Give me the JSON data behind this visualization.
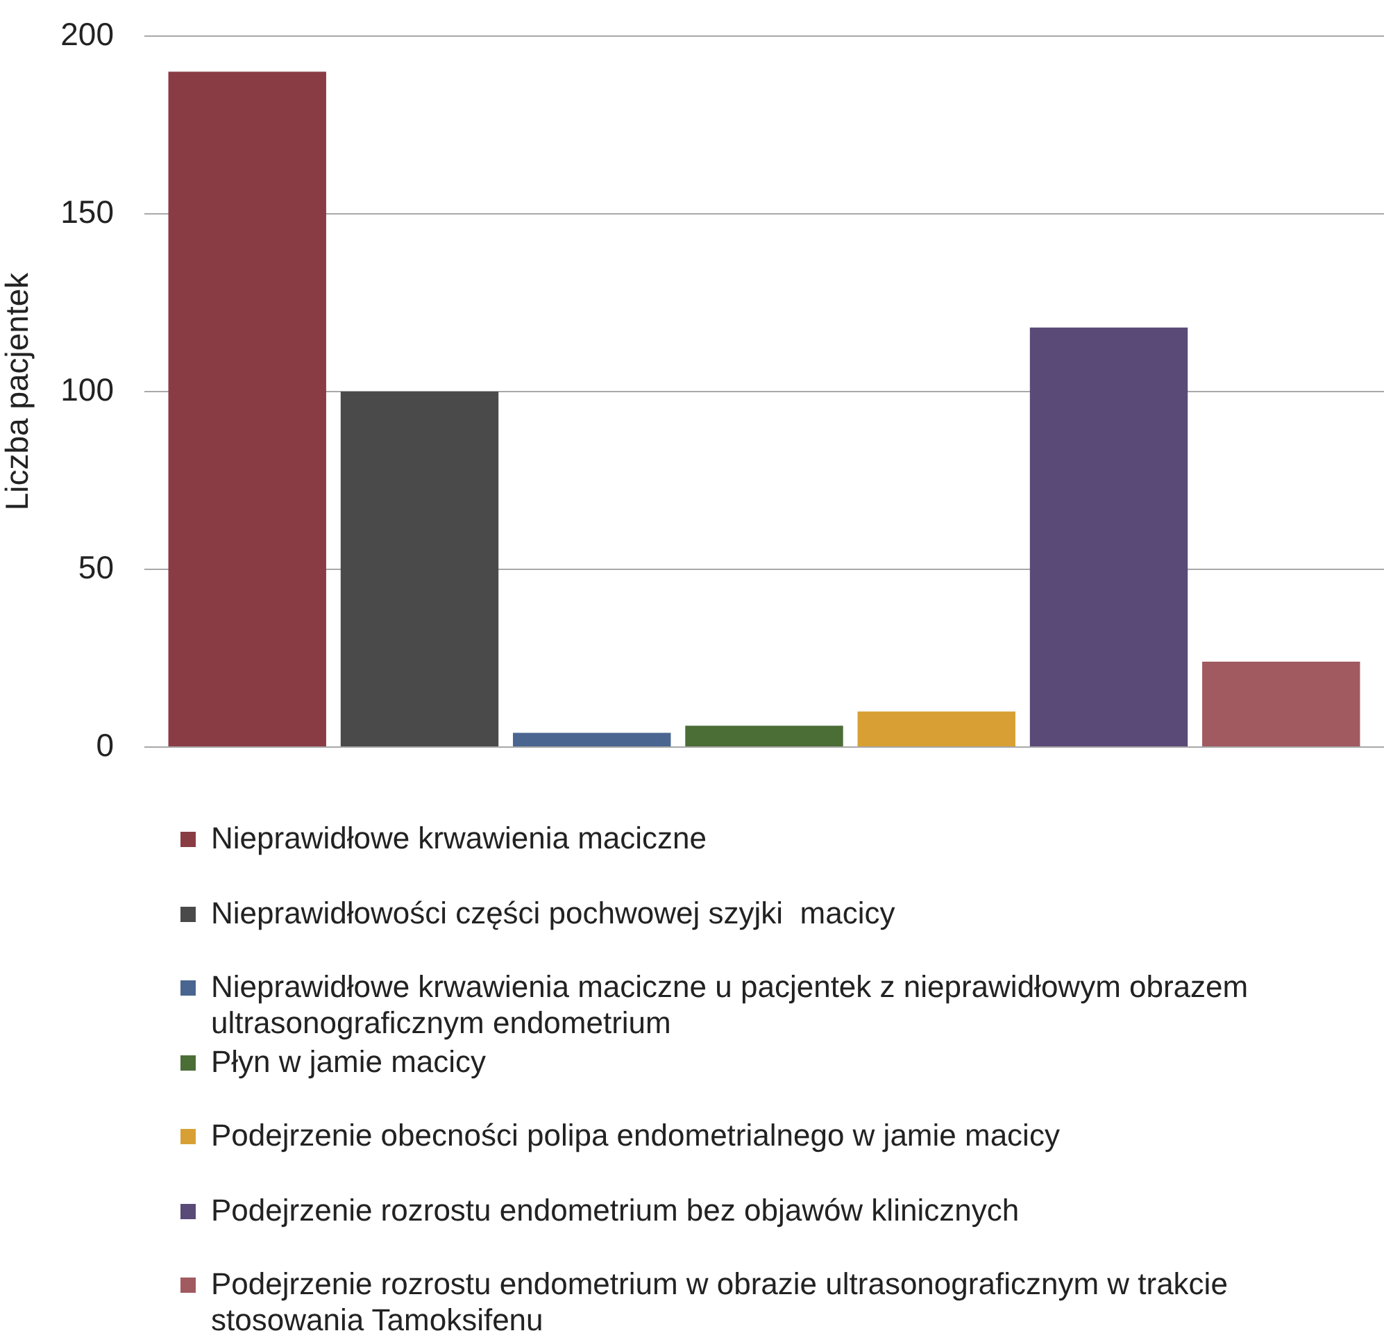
{
  "chart_data": {
    "type": "bar",
    "ylabel": "Liczba pacjentek",
    "categories": [
      null
    ],
    "series": [
      {
        "name": "Nieprawidłowe krwawienia maciczne",
        "color": "#8a3c45",
        "values": [
          190
        ]
      },
      {
        "name": "Nieprawidłowości części pochwowej szyjki  macicy",
        "color": "#4a4a4a",
        "values": [
          100
        ]
      },
      {
        "name": "Nieprawidłowe krwawienia maciczne u pacjentek z nieprawidłowym obrazem ultrasonograficznym endometrium",
        "color": "#4a6590",
        "values": [
          4
        ]
      },
      {
        "name": "Płyn w jamie macicy",
        "color": "#4b6d36",
        "values": [
          6
        ]
      },
      {
        "name": "Podejrzenie obecności polipa endometrialnego w jamie macicy",
        "color": "#d8a034",
        "values": [
          10
        ]
      },
      {
        "name": "Podejrzenie rozrostu endometrium bez objawów klinicznych",
        "color": "#5a4a77",
        "values": [
          118
        ]
      },
      {
        "name": "Podejrzenie rozrostu endometrium w obrazie ultrasonograficznym w trakcie stosowania Tamoksifenu",
        "color": "#a05a60",
        "values": [
          24
        ]
      }
    ],
    "ylim": [
      0,
      200
    ],
    "yticks": [
      0,
      50,
      100,
      150,
      200
    ],
    "grid": "y",
    "legend": "bottom"
  }
}
